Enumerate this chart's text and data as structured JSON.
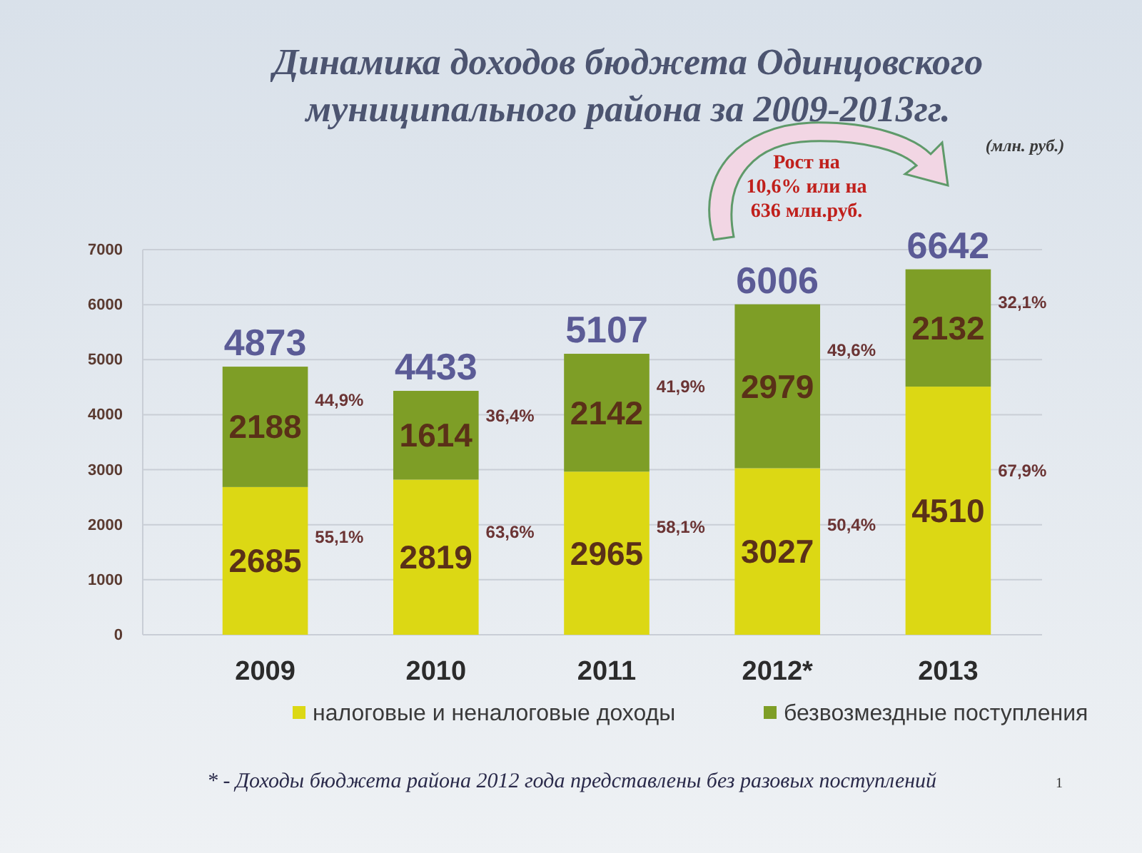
{
  "chart_data": {
    "type": "bar",
    "title": "Динамика доходов бюджета Одинцовского\nмуниципального района за 2009-2013гг.",
    "categories": [
      "2009",
      "2010",
      "2011",
      "2012*",
      "2013"
    ],
    "stacked": true,
    "series": [
      {
        "name": "налоговые и неналоговые доходы",
        "color": "#dcd814",
        "values": [
          2685,
          2819,
          2965,
          3027,
          4510
        ]
      },
      {
        "name": "безвозмездные поступления",
        "color": "#7e9e26",
        "values": [
          2188,
          1614,
          2142,
          2979,
          2132
        ]
      }
    ],
    "ylim": [
      0,
      7000
    ],
    "yticks": [
      0,
      1000,
      2000,
      3000,
      4000,
      5000,
      6000,
      7000
    ],
    "grid": "y",
    "legend": "bottom",
    "data_labels": true,
    "totals": [
      "4873",
      "4433",
      "5107",
      "6006",
      "6642"
    ],
    "annotations": [
      "(млн. руб.)",
      "Рост на\n10,6% или на\n636 млн.руб.",
      "* - Доходы бюджета района 2012 года представлены без разовых поступлений",
      "1",
      "44,9%",
      "55,1%",
      "36,4%",
      "63,6%",
      "41,9%",
      "58,1%",
      "49,6%",
      "50,4%",
      "32,1%",
      "67,9%"
    ]
  }
}
